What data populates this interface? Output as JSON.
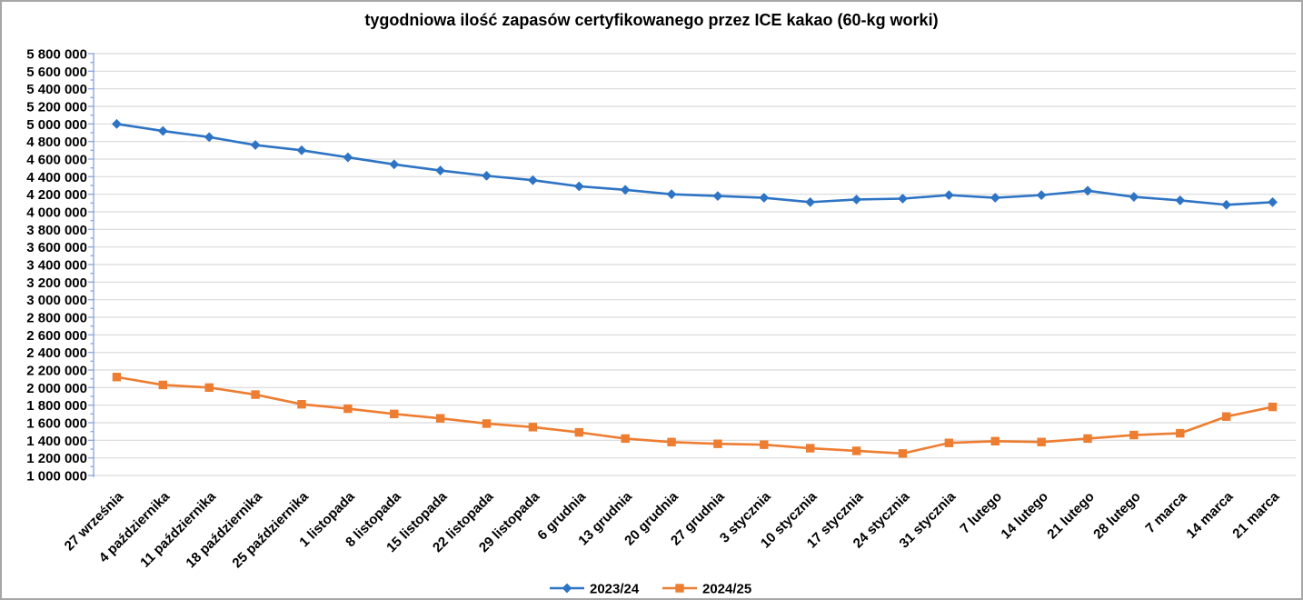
{
  "chart_data": {
    "type": "line",
    "title": "tygodniowa ilość zapasów certyfikowanego przez ICE kakao (60-kg worki)",
    "xlabel": "",
    "ylabel": "",
    "ylim": [
      1000000,
      5800000
    ],
    "ytick_step": 200000,
    "ytick_minor_step": 100000,
    "grid": true,
    "legend_position": "bottom-center",
    "axis_color": "#8FAADC",
    "gridline_color": "#D9D9D9",
    "text_color": "#000000",
    "background_color": "#FFFFFF",
    "border_color": "#A6A6A6",
    "ytick_labels": [
      "5 800 000",
      "5 600 000",
      "5 400 000",
      "5 200 000",
      "5 000 000",
      "4 800 000",
      "4 600 000",
      "4 400 000",
      "4 200 000",
      "4 000 000",
      "3 800 000",
      "3 600 000",
      "3 400 000",
      "3 200 000",
      "3 000 000",
      "2 800 000",
      "2 600 000",
      "2 400 000",
      "2 200 000",
      "2 000 000",
      "1 800 000",
      "1 600 000",
      "1 400 000",
      "1 200 000",
      "1 000 000"
    ],
    "categories": [
      "27 września",
      "4 października",
      "11 października",
      "18 października",
      "25 października",
      "1 listopada",
      "8 listopada",
      "15 listopada",
      "22 listopada",
      "29 listopada",
      "6 grudnia",
      "13 grudnia",
      "20 grudnia",
      "27 grudnia",
      "3 stycznia",
      "10 stycznia",
      "17 stycznia",
      "24 stycznia",
      "31 stycznia",
      "7 lutego",
      "14 lutego",
      "21 lutego",
      "28 lutego",
      "7 marca",
      "14 marca",
      "21 marca"
    ],
    "series": [
      {
        "name": "2023/24",
        "color": "#2E74C4",
        "marker": "diamond",
        "values": [
          5000000,
          4920000,
          4850000,
          4760000,
          4700000,
          4620000,
          4540000,
          4470000,
          4410000,
          4360000,
          4290000,
          4250000,
          4200000,
          4180000,
          4160000,
          4110000,
          4140000,
          4150000,
          4190000,
          4160000,
          4190000,
          4240000,
          4170000,
          4130000,
          4080000,
          4110000
        ]
      },
      {
        "name": "2024/25",
        "color": "#ED7D31",
        "marker": "square",
        "values": [
          2120000,
          2030000,
          2000000,
          1920000,
          1810000,
          1760000,
          1700000,
          1650000,
          1590000,
          1550000,
          1490000,
          1420000,
          1380000,
          1360000,
          1350000,
          1310000,
          1280000,
          1250000,
          1370000,
          1390000,
          1380000,
          1420000,
          1460000,
          1480000,
          1670000,
          1780000
        ]
      }
    ]
  }
}
